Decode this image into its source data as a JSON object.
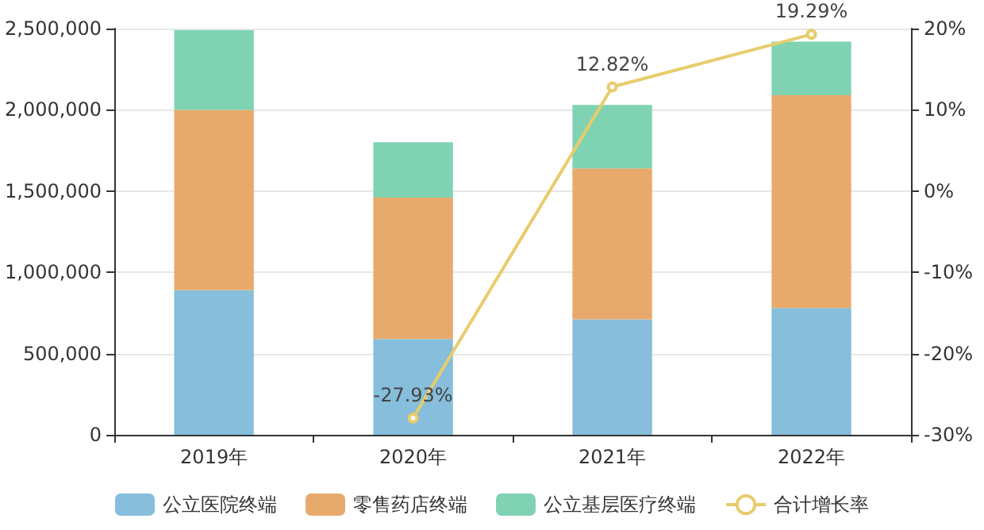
{
  "chart_data": {
    "type": "bar",
    "stacked": true,
    "categories": [
      "2019年",
      "2020年",
      "2021年",
      "2022年"
    ],
    "series": [
      {
        "name": "公立医院终端",
        "color": "#86bedb",
        "values": [
          890000,
          590000,
          710000,
          780000
        ]
      },
      {
        "name": "零售药店终端",
        "color": "#e8aa6c",
        "values": [
          1110000,
          870000,
          930000,
          1310000
        ]
      },
      {
        "name": "公立基层医疗终端",
        "color": "#7fd3b2",
        "values": [
          490000,
          340000,
          390000,
          330000
        ]
      },
      {
        "name": "合计增长率",
        "type": "line",
        "axis": "y2",
        "color": "#e8cc6c",
        "values": [
          null,
          -27.93,
          12.82,
          19.29
        ],
        "value_labels": [
          null,
          "-27.93%",
          "12.82%",
          "19.29%"
        ]
      }
    ],
    "ylim": [
      0,
      2500000
    ],
    "yticks": [
      {
        "value": 0,
        "label": "0"
      },
      {
        "value": 500000,
        "label": "500,000"
      },
      {
        "value": 1000000,
        "label": "1,000,000"
      },
      {
        "value": 1500000,
        "label": "1,500,000"
      },
      {
        "value": 2000000,
        "label": "2,000,000"
      },
      {
        "value": 2500000,
        "label": "2,500,000"
      }
    ],
    "y2lim": [
      -30,
      20
    ],
    "y2ticks": [
      {
        "value": -30,
        "label": "-30%"
      },
      {
        "value": -20,
        "label": "-20%"
      },
      {
        "value": -10,
        "label": "-10%"
      },
      {
        "value": 0,
        "label": "0%"
      },
      {
        "value": 10,
        "label": "10%"
      },
      {
        "value": 20,
        "label": "20%"
      }
    ],
    "grid": "y",
    "legend": "bottom",
    "marker": "circle"
  }
}
